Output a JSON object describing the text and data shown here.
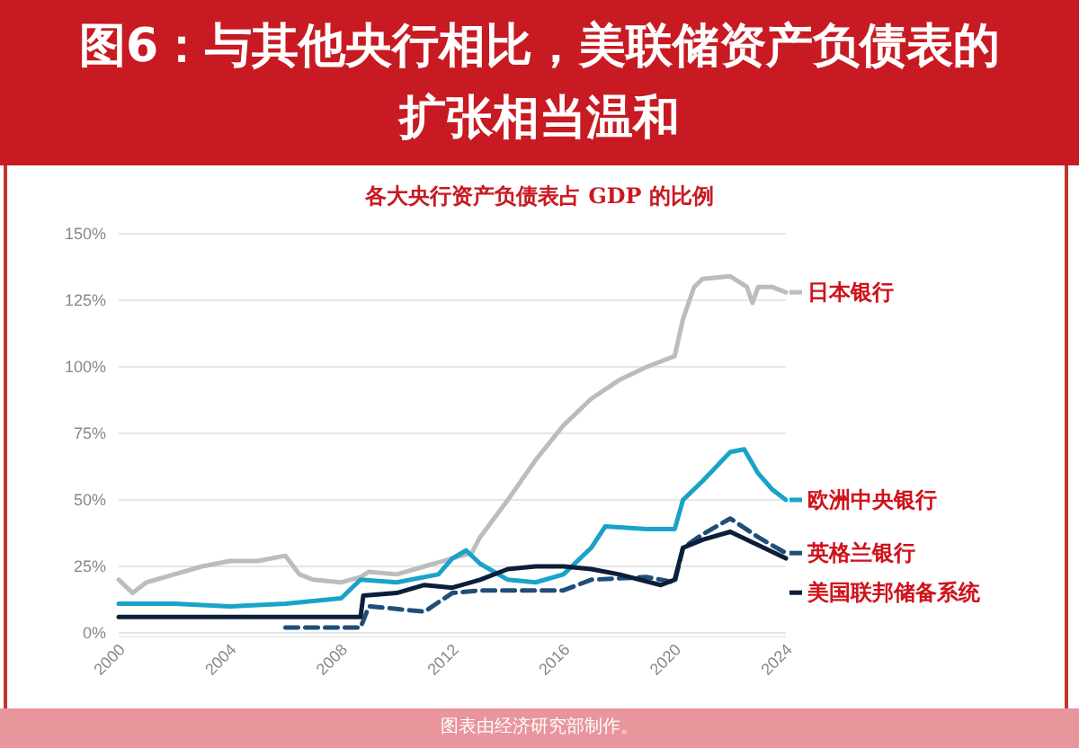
{
  "chart_data": {
    "type": "line",
    "title": "图6：与其他央行相比，美联储资产负债表的扩张相当温和",
    "subtitle": "各大央行资产负债表占 GDP 的比例",
    "annotations": [
      "图表由经济研究部制作。"
    ],
    "xlim": [
      2000,
      2024
    ],
    "xticks": [
      2000,
      2004,
      2008,
      2012,
      2016,
      2020,
      2024
    ],
    "ylim": [
      0,
      150
    ],
    "yticks": [
      {
        "value": 0,
        "label": "0%"
      },
      {
        "value": 25,
        "label": "25%"
      },
      {
        "value": 50,
        "label": "50%"
      },
      {
        "value": 75,
        "label": "75%"
      },
      {
        "value": 100,
        "label": "100%"
      },
      {
        "value": 125,
        "label": "125%"
      },
      {
        "value": 150,
        "label": "150%"
      }
    ],
    "grid": "y",
    "legend": "right",
    "series": [
      {
        "name": "日本银行",
        "color": "#b9bdbd",
        "x": [
          2000,
          2000.5,
          2001,
          2002,
          2003,
          2004,
          2005,
          2006,
          2006.5,
          2007,
          2008,
          2008.7,
          2009,
          2010,
          2011,
          2012,
          2012.7,
          2013,
          2014,
          2015,
          2016,
          2017,
          2018,
          2019,
          2020,
          2020.3,
          2020.7,
          2021,
          2022,
          2022.6,
          2022.8,
          2023,
          2023.5,
          2024
        ],
        "values": [
          20,
          15,
          19,
          22,
          25,
          27,
          27,
          29,
          22,
          20,
          19,
          21,
          23,
          22,
          25,
          28,
          30,
          36,
          50,
          65,
          78,
          88,
          95,
          100,
          104,
          118,
          130,
          133,
          134,
          130,
          124,
          130,
          130,
          128
        ]
      },
      {
        "name": "欧洲中央银行",
        "color": "#1aa3c8",
        "x": [
          2000,
          2002,
          2004,
          2006,
          2008,
          2008.7,
          2010,
          2011.5,
          2012,
          2012.5,
          2013,
          2014,
          2015,
          2016,
          2017,
          2017.5,
          2019,
          2020,
          2020.3,
          2021,
          2022,
          2022.5,
          2023,
          2023.5,
          2024
        ],
        "values": [
          11,
          11,
          10,
          11,
          13,
          20,
          19,
          22,
          28,
          31,
          26,
          20,
          19,
          22,
          32,
          40,
          39,
          39,
          50,
          57,
          68,
          69,
          60,
          54,
          50
        ]
      },
      {
        "name": "英格兰银行",
        "color": "#1f4e79",
        "line_style": "dashed",
        "x": [
          2006,
          2008.7,
          2009,
          2011,
          2012,
          2013,
          2016,
          2017,
          2019,
          2020,
          2020.3,
          2021,
          2022,
          2023,
          2024
        ],
        "values": [
          2,
          2,
          10,
          8,
          15,
          16,
          16,
          20,
          21,
          19,
          32,
          37,
          43,
          36,
          30
        ]
      },
      {
        "name": "美国联邦储备系统",
        "color": "#0b1f3a",
        "x": [
          2000,
          2008.7,
          2008.8,
          2010,
          2011,
          2012,
          2013,
          2014,
          2015,
          2016,
          2017,
          2018,
          2019.5,
          2020,
          2020.3,
          2021,
          2022,
          2023,
          2024
        ],
        "values": [
          6,
          6,
          14,
          15,
          18,
          17,
          20,
          24,
          25,
          25,
          24,
          22,
          18,
          20,
          32,
          35,
          38,
          33,
          28
        ]
      }
    ]
  }
}
